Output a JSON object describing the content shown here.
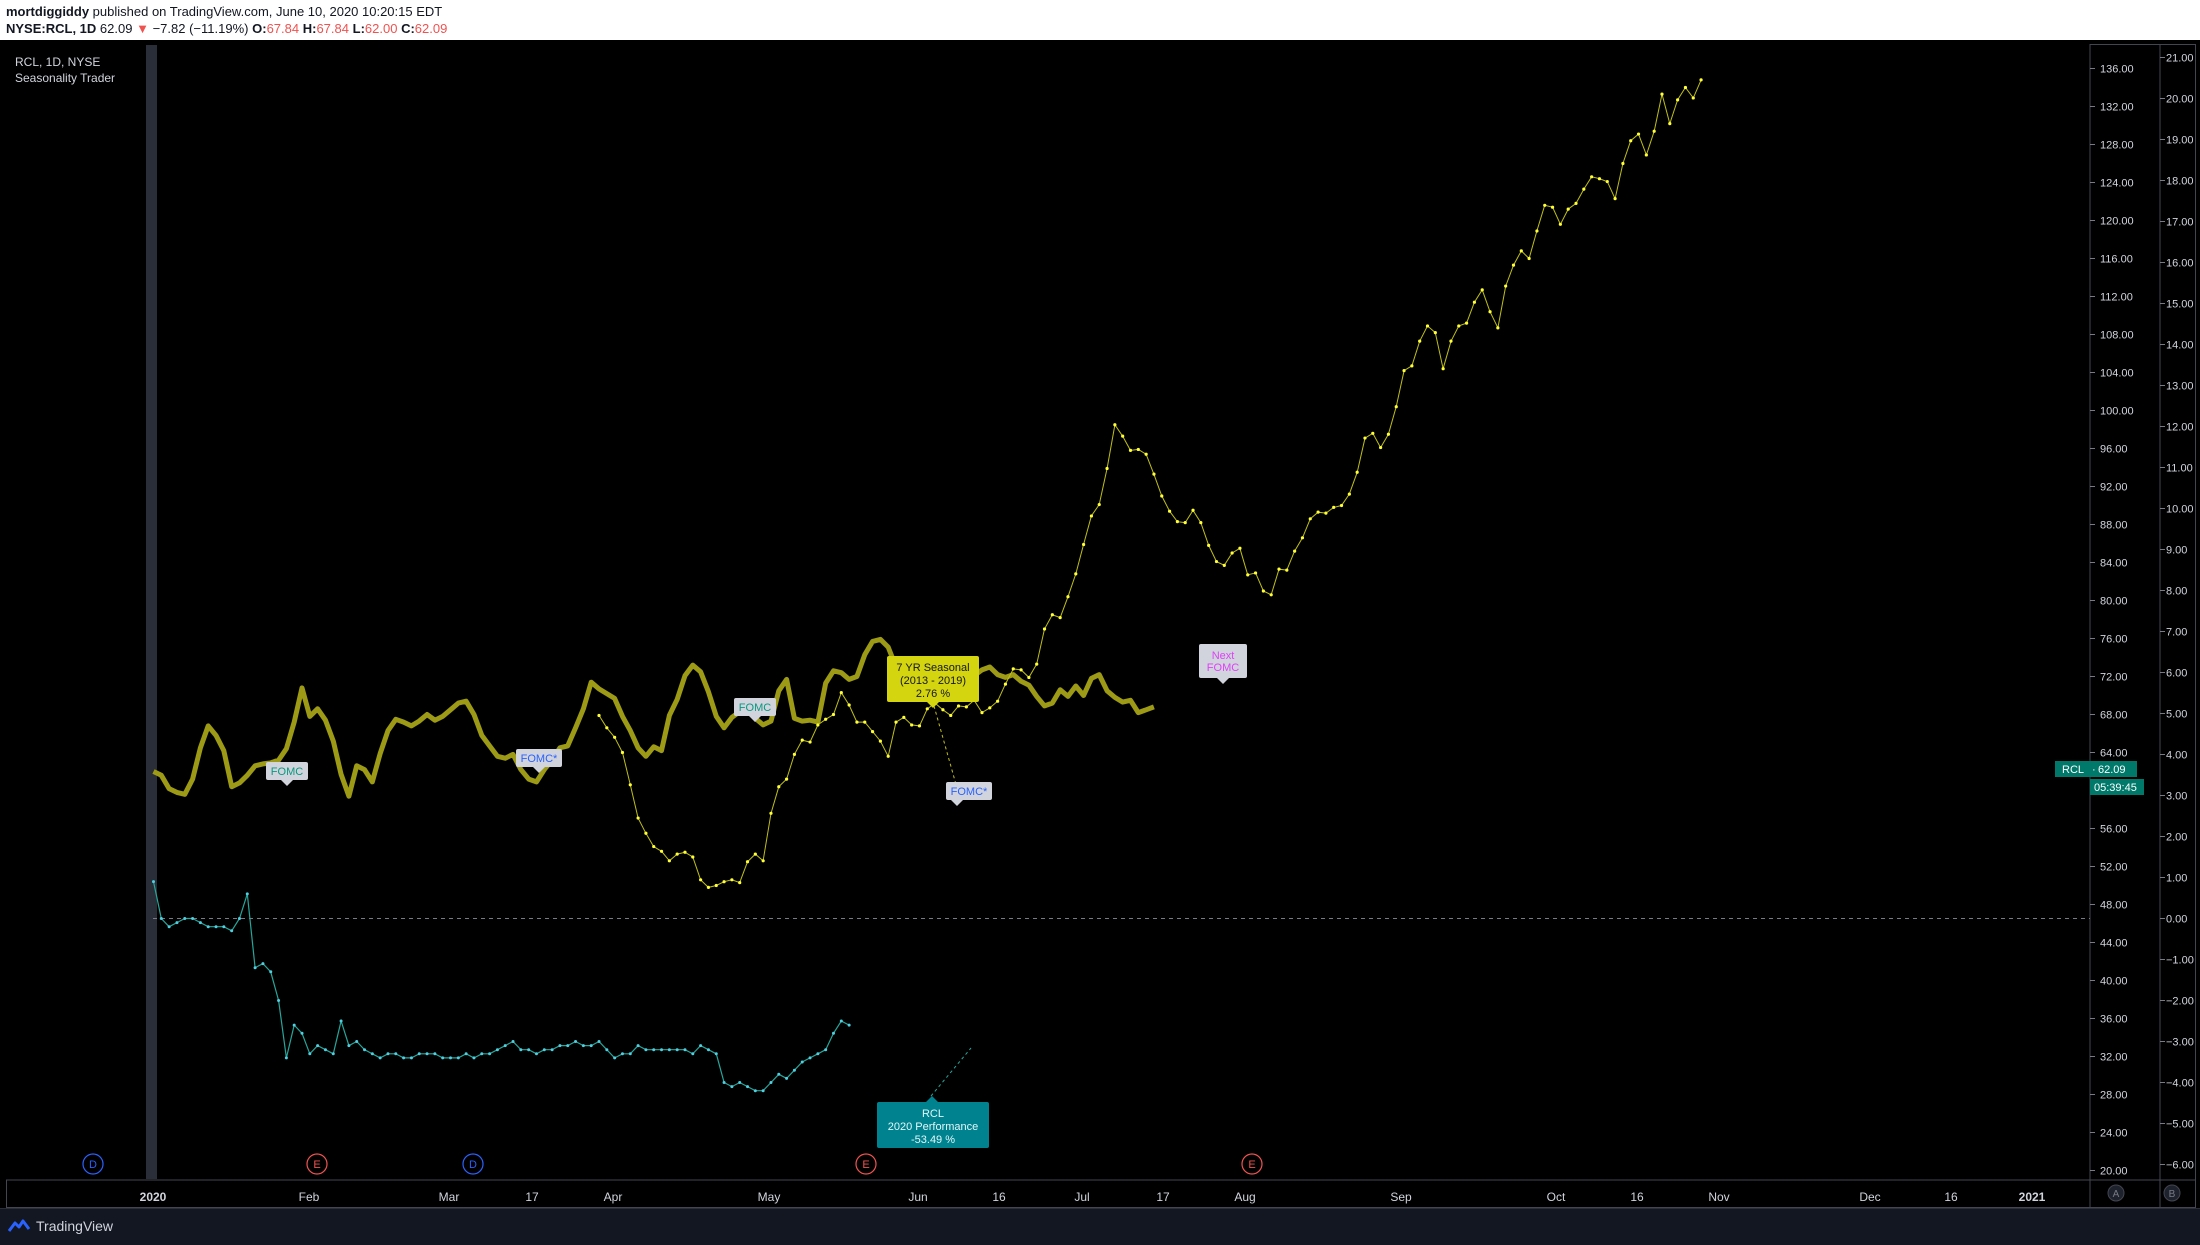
{
  "header": {
    "author": "mortdiggiddy",
    "published": "published on TradingView.com, June 10, 2020 10:20:15 EDT",
    "symbol": "NYSE:RCL, 1D",
    "last": "62.09",
    "change": "−7.82 (−11.19%)",
    "open_label": "O:",
    "open": "67.84",
    "high_label": "H:",
    "high": "67.84",
    "low_label": "L:",
    "low": "62.00",
    "close_label": "C:",
    "close": "62.09"
  },
  "legend": {
    "line1": "RCL, 1D, NYSE",
    "line2": "Seasonality Trader"
  },
  "footer": {
    "brand": "TradingView"
  },
  "chart_data": {
    "type": "line",
    "x_ticks": [
      "2020",
      "Feb",
      "Mar",
      "17",
      "Apr",
      "May",
      "Jun",
      "16",
      "Jul",
      "17",
      "Aug",
      "Sep",
      "Oct",
      "16",
      "Nov",
      "Dec",
      "16",
      "2021"
    ],
    "y_left_ticks": [
      "136.00",
      "132.00",
      "128.00",
      "124.00",
      "120.00",
      "116.00",
      "112.00",
      "108.00",
      "104.00",
      "100.00",
      "96.00",
      "92.00",
      "88.00",
      "84.00",
      "80.00",
      "76.00",
      "72.00",
      "68.00",
      "64.00",
      "60.00",
      "56.00",
      "52.00",
      "48.00",
      "44.00",
      "40.00",
      "36.00",
      "32.00",
      "28.00",
      "24.00",
      "20.00"
    ],
    "y_right_ticks": [
      "21.00",
      "20.00",
      "19.00",
      "18.00",
      "17.00",
      "16.00",
      "15.00",
      "14.00",
      "13.00",
      "12.00",
      "11.00",
      "10.00",
      "9.00",
      "8.00",
      "7.00",
      "6.00",
      "5.00",
      "4.00",
      "3.00",
      "2.00",
      "1.00",
      "0.00",
      "−1.00",
      "−2.00",
      "−3.00",
      "−4.00",
      "−5.00",
      "−6.00"
    ],
    "series": [
      {
        "color": "#9d9a16",
        "values": [
          62.0,
          61.6,
          60.2,
          59.8,
          59.6,
          61.2,
          64.5,
          66.8,
          65.8,
          64.2,
          60.4,
          60.8,
          61.6,
          62.6,
          62.8,
          62.9,
          63.2,
          64.4,
          67.2,
          70.8,
          67.8,
          68.6,
          67.4,
          65.2,
          61.7,
          59.4,
          62.6,
          62.2,
          60.9,
          63.9,
          66.3,
          67.5,
          67.2,
          66.8,
          67.3,
          68.0,
          67.4,
          67.8,
          68.5,
          69.2,
          69.4,
          68.0,
          65.8,
          64.7,
          63.6,
          63.4,
          63.8,
          62.2,
          61.2,
          60.9,
          62.2,
          63.2,
          64.5,
          64.7,
          66.6,
          68.6,
          71.4,
          70.7,
          70.2,
          69.7,
          67.8,
          66.3,
          64.5,
          63.6,
          64.6,
          64.2,
          67.9,
          69.6,
          72.1,
          73.2,
          72.5,
          70.4,
          67.8,
          66.6,
          67.7,
          68.3,
          68.6,
          67.6,
          66.9,
          67.3,
          70.5,
          71.7,
          67.6,
          67.3,
          67.4,
          67.2,
          71.3,
          72.6,
          72.4,
          71.7,
          72.0,
          74.3,
          75.7,
          75.9,
          75.1,
          73.0,
          71.5,
          71.0,
          71.2,
          70.7,
          69.6,
          72.6,
          72.8,
          70.8,
          69.9,
          72.1,
          72.7,
          73.0,
          72.2,
          71.9,
          72.2,
          71.5,
          71.1,
          69.9,
          68.9,
          69.2,
          70.6,
          69.9,
          71.0,
          70.0,
          71.8,
          72.2,
          70.5,
          69.8,
          69.3,
          69.5,
          68.2,
          68.5,
          68.8
        ]
      },
      {
        "color": "#bfbf19",
        "values": [
          67.9,
          66.6,
          65.6,
          64.0,
          60.6,
          57.1,
          55.5,
          54.1,
          53.6,
          52.6,
          53.3,
          53.5,
          53.0,
          50.6,
          49.8,
          50.0,
          50.4,
          50.6,
          50.3,
          52.5,
          53.3,
          52.6,
          57.6,
          60.4,
          61.2,
          63.8,
          65.3,
          65.1,
          66.9,
          67.5,
          68.0,
          70.3,
          69.0,
          67.2,
          67.2,
          66.2,
          65.2,
          63.6,
          67.2,
          67.7,
          66.9,
          66.8,
          68.6,
          69.2,
          68.5,
          67.9,
          68.9,
          68.8,
          69.5,
          68.2,
          68.7,
          69.4,
          71.2,
          72.8,
          72.7,
          71.9,
          73.3,
          77.0,
          78.5,
          78.2,
          80.4,
          82.8,
          85.9,
          88.9,
          90.1,
          93.9,
          98.5,
          97.3,
          95.8,
          95.9,
          95.4,
          93.3,
          91.0,
          89.4,
          88.3,
          88.2,
          89.5,
          88.2,
          85.8,
          84.1,
          83.7,
          85.0,
          85.5,
          82.7,
          82.9,
          81.0,
          80.6,
          83.3,
          83.2,
          85.2,
          86.6,
          88.6,
          89.3,
          89.2,
          89.8,
          90.0,
          91.2,
          93.5,
          97.1,
          97.6,
          96.1,
          97.5,
          100.4,
          104.2,
          104.7,
          107.3,
          108.9,
          108.2,
          104.4,
          107.3,
          108.9,
          109.2,
          111.4,
          112.7,
          110.4,
          108.7,
          113.1,
          115.3,
          116.8,
          116.0,
          118.9,
          121.6,
          121.4,
          119.6,
          121.2,
          121.8,
          123.3,
          124.6,
          124.4,
          124.1,
          122.3,
          126.0,
          128.4,
          129.1,
          126.9,
          129.4,
          133.3,
          130.2,
          132.7,
          134.0,
          132.9,
          134.8
        ]
      },
      {
        "color": "#26a69a",
        "values": [
          0.9,
          0.0,
          -0.2,
          -0.1,
          0.0,
          0.0,
          -0.1,
          -0.2,
          -0.2,
          -0.2,
          -0.3,
          0.0,
          0.6,
          -1.2,
          -1.1,
          -1.3,
          -2.0,
          -3.4,
          -2.6,
          -2.8,
          -3.3,
          -3.1,
          -3.2,
          -3.3,
          -2.5,
          -3.1,
          -3.0,
          -3.2,
          -3.3,
          -3.4,
          -3.3,
          -3.3,
          -3.4,
          -3.4,
          -3.3,
          -3.3,
          -3.3,
          -3.4,
          -3.4,
          -3.4,
          -3.3,
          -3.4,
          -3.3,
          -3.3,
          -3.2,
          -3.1,
          -3.0,
          -3.2,
          -3.2,
          -3.3,
          -3.2,
          -3.2,
          -3.1,
          -3.1,
          -3.0,
          -3.1,
          -3.1,
          -3.0,
          -3.2,
          -3.4,
          -3.3,
          -3.3,
          -3.1,
          -3.2,
          -3.2,
          -3.2,
          -3.2,
          -3.2,
          -3.2,
          -3.3,
          -3.1,
          -3.2,
          -3.3,
          -4.0,
          -4.1,
          -4.0,
          -4.1,
          -4.2,
          -4.2,
          -4.0,
          -3.8,
          -3.9,
          -3.7,
          -3.5,
          -3.4,
          -3.3,
          -3.2,
          -2.8,
          -2.5,
          -2.6
        ]
      }
    ],
    "annotations": [
      {
        "label": "FOMC"
      },
      {
        "label": "FOMC*"
      },
      {
        "label": "FOMC"
      },
      {
        "label": "FOMC*"
      },
      {
        "label": "7 YR Seasonal",
        "line2": "(2013 - 2019)",
        "line3": "2.76 %"
      },
      {
        "label": "Next",
        "line2": "FOMC"
      },
      {
        "label": "RCL",
        "line2": "2020 Performance",
        "line3": "-53.49 %"
      }
    ],
    "event_markers": [
      "D",
      "E",
      "D",
      "E",
      "E"
    ],
    "price_badge": {
      "symbol": "RCL",
      "value": "62.09",
      "countdown": "05:39:45"
    },
    "axis_badges": [
      "A",
      "B"
    ],
    "zero_line": 0.0
  }
}
